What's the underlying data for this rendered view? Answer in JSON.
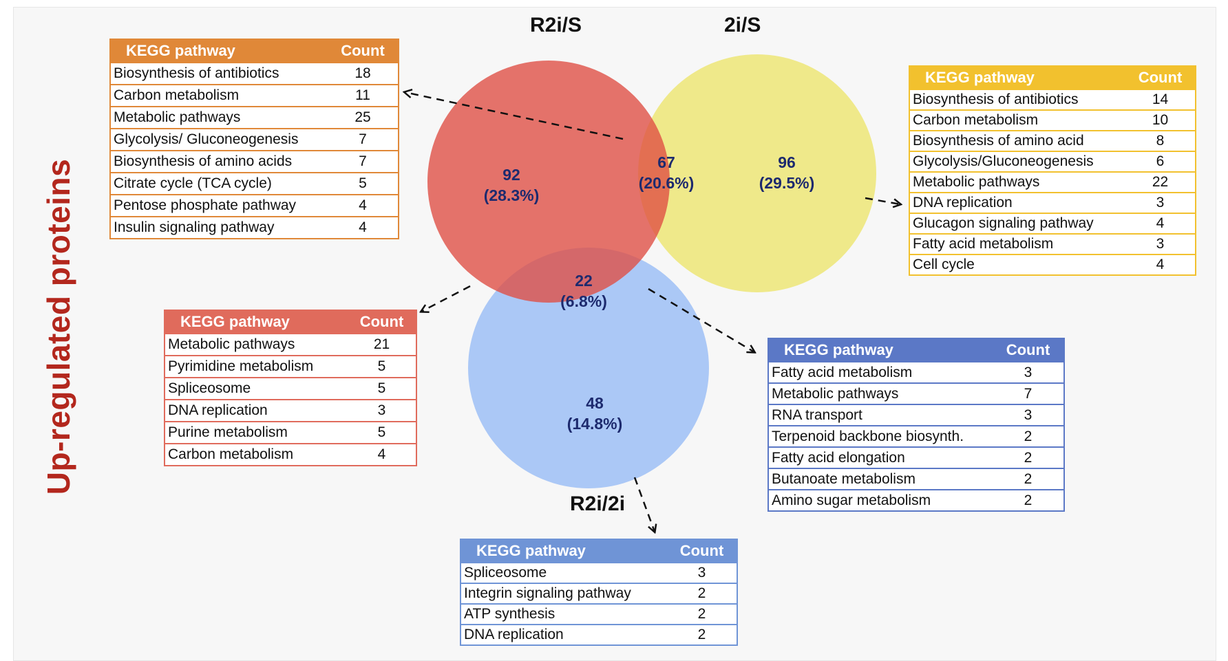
{
  "side_title": "Up-regulated proteins",
  "sets": {
    "r2i_s": "R2i/S",
    "two_i_s": "2i/S",
    "r2i_2i": "R2i/2i"
  },
  "regions": {
    "r2i_only": {
      "count": "92",
      "percent": "(28.3%)"
    },
    "r2i_2i_overlap": {
      "count": "67",
      "percent": "(20.6%)"
    },
    "two_i_only": {
      "count": "96",
      "percent": "(29.5%)"
    },
    "center": {
      "count": "22",
      "percent": "(6.8%)"
    },
    "bottom_only": {
      "count": "48",
      "percent": "(14.8%)"
    }
  },
  "colors": {
    "red_circle": "#df4d42",
    "yellow_circle": "#ebe35f",
    "blue_circle": "#8eb6f5",
    "title_red": "#b3271d",
    "label_navy": "#1d2a6e"
  },
  "tables": {
    "top_left": {
      "header": [
        "KEGG pathway",
        "Count"
      ],
      "rows": [
        [
          "Biosynthesis of antibiotics",
          "18"
        ],
        [
          "Carbon metabolism",
          "11"
        ],
        [
          "Metabolic pathways",
          "25"
        ],
        [
          "Glycolysis/ Gluconeogenesis",
          "7"
        ],
        [
          "Biosynthesis of amino acids",
          "7"
        ],
        [
          "Citrate cycle (TCA cycle)",
          "5"
        ],
        [
          "Pentose phosphate pathway",
          "4"
        ],
        [
          "Insulin signaling pathway",
          "4"
        ]
      ]
    },
    "right": {
      "header": [
        "KEGG pathway",
        "Count"
      ],
      "rows": [
        [
          "Biosynthesis of antibiotics",
          "14"
        ],
        [
          "Carbon metabolism",
          "10"
        ],
        [
          "Biosynthesis of amino acid",
          "8"
        ],
        [
          "Glycolysis/Gluconeogenesis",
          "6"
        ],
        [
          "Metabolic pathways",
          "22"
        ],
        [
          "DNA replication",
          "3"
        ],
        [
          "Glucagon signaling pathway",
          "4"
        ],
        [
          "Fatty acid metabolism",
          "3"
        ],
        [
          "Cell cycle",
          "4"
        ]
      ]
    },
    "mid_left": {
      "header": [
        "KEGG pathway",
        "Count"
      ],
      "rows": [
        [
          "Metabolic pathways",
          "21"
        ],
        [
          "Pyrimidine metabolism",
          "5"
        ],
        [
          "Spliceosome",
          "5"
        ],
        [
          "DNA replication",
          "3"
        ],
        [
          "Purine metabolism",
          "5"
        ],
        [
          "Carbon metabolism",
          "4"
        ]
      ]
    },
    "mid_right": {
      "header": [
        "KEGG pathway",
        "Count"
      ],
      "rows": [
        [
          "Fatty acid metabolism",
          "3"
        ],
        [
          "Metabolic pathways",
          "7"
        ],
        [
          "RNA transport",
          "3"
        ],
        [
          "Terpenoid backbone biosynth.",
          "2"
        ],
        [
          "Fatty acid elongation",
          "2"
        ],
        [
          "Butanoate metabolism",
          "2"
        ],
        [
          "Amino sugar  metabolism",
          "2"
        ]
      ]
    },
    "bottom": {
      "header": [
        "KEGG pathway",
        "Count"
      ],
      "rows": [
        [
          "Spliceosome",
          "3"
        ],
        [
          "Integrin signaling pathway",
          "2"
        ],
        [
          "ATP synthesis",
          "2"
        ],
        [
          "DNA replication",
          "2"
        ]
      ]
    }
  }
}
